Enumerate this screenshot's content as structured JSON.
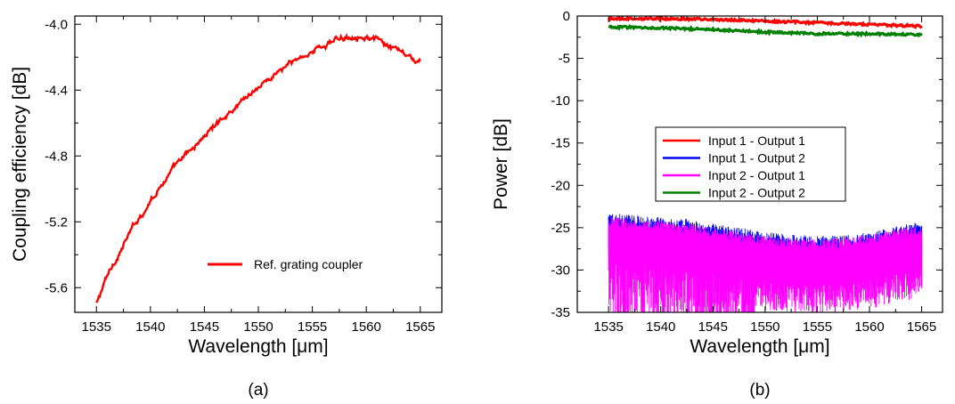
{
  "chart_data": [
    {
      "type": "line",
      "panel_label": "(a)",
      "xlabel": "Wavelength [μm]",
      "ylabel": "Coupling efficiency [dB]",
      "xlim": [
        1533,
        1567
      ],
      "ylim": [
        -5.75,
        -3.95
      ],
      "xticks": [
        1535,
        1540,
        1545,
        1550,
        1555,
        1560,
        1565
      ],
      "yticks": [
        -4.0,
        -4.4,
        -4.8,
        -5.2,
        -5.6
      ],
      "ytick_labels": [
        "-4.0",
        "-4.4",
        "-4.8",
        "-5.2",
        "-5.6"
      ],
      "legend_position": "bottom-right",
      "series": [
        {
          "name": "Ref. grating coupler",
          "color": "#ff0000",
          "x": [
            1535,
            1536,
            1537,
            1538,
            1539,
            1540,
            1541,
            1542,
            1543,
            1544,
            1545,
            1546,
            1547,
            1548,
            1549,
            1550,
            1551,
            1552,
            1553,
            1554,
            1555,
            1556,
            1557,
            1558,
            1559,
            1560,
            1561,
            1562,
            1563,
            1564,
            1565
          ],
          "y": [
            -5.7,
            -5.53,
            -5.4,
            -5.28,
            -5.17,
            -5.07,
            -4.97,
            -4.89,
            -4.82,
            -4.75,
            -4.68,
            -4.61,
            -4.55,
            -4.49,
            -4.43,
            -4.38,
            -4.33,
            -4.28,
            -4.24,
            -4.2,
            -4.16,
            -4.13,
            -4.1,
            -4.08,
            -4.06,
            -4.07,
            -4.1,
            -4.14,
            -4.17,
            -4.2,
            -4.24
          ]
        }
      ]
    },
    {
      "type": "line",
      "panel_label": "(b)",
      "xlabel": "Wavelength [μm]",
      "ylabel": "Power [dB]",
      "xlim": [
        1532,
        1567
      ],
      "ylim": [
        -35,
        0
      ],
      "xticks": [
        1535,
        1540,
        1545,
        1550,
        1555,
        1560,
        1565
      ],
      "yticks": [
        0,
        -5,
        -10,
        -15,
        -20,
        -25,
        -30,
        -35
      ],
      "legend_position": "center-right",
      "series": [
        {
          "name": "Input 1  -  Output 1",
          "color": "#ff0000",
          "x": [
            1535,
            1540,
            1545,
            1550,
            1555,
            1560,
            1565
          ],
          "y": [
            -0.3,
            -0.3,
            -0.4,
            -0.6,
            -0.8,
            -1.0,
            -1.2
          ]
        },
        {
          "name": "Input 1  -  Output 2",
          "color": "#0000ff",
          "x": [
            1535,
            1537.5,
            1540,
            1542.5,
            1545,
            1547.5,
            1550,
            1552.5,
            1555,
            1557.5,
            1560,
            1562.5,
            1565
          ],
          "y": [
            -25.5,
            -25.8,
            -26.0,
            -26.3,
            -26.8,
            -27.3,
            -27.8,
            -28.1,
            -28.3,
            -28.2,
            -27.8,
            -27.2,
            -26.5
          ]
        },
        {
          "name": "Input 2  -  Output 1",
          "color": "#ff00ff",
          "x": [
            1535,
            1537.5,
            1540,
            1542.5,
            1545,
            1547.5,
            1550,
            1552.5,
            1555,
            1557.5,
            1560,
            1562.5,
            1565
          ],
          "y": [
            -26.5,
            -26.8,
            -27.0,
            -27.3,
            -27.8,
            -28.3,
            -28.8,
            -29.0,
            -29.2,
            -29.0,
            -28.6,
            -28.0,
            -27.5
          ]
        },
        {
          "name": "Input 2  -  Output 2",
          "color": "#008000",
          "x": [
            1535,
            1540,
            1545,
            1550,
            1555,
            1560,
            1565
          ],
          "y": [
            -1.3,
            -1.4,
            -1.6,
            -1.9,
            -2.1,
            -2.1,
            -2.2
          ]
        }
      ]
    }
  ]
}
